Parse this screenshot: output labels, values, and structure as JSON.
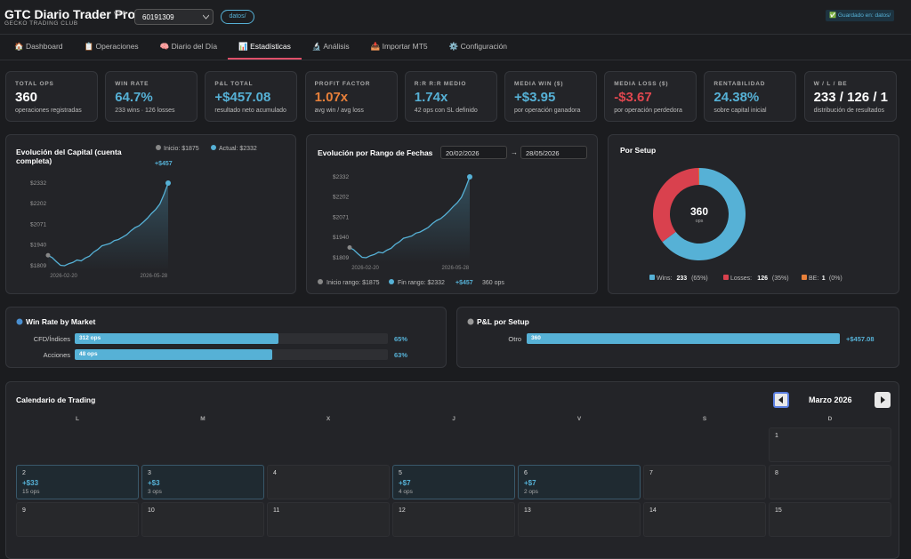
{
  "header": {
    "title": "GTC Diario Trader Pro",
    "version": "v3.8",
    "subtitle": "GECKO TRADING CLUB",
    "account": "60191309",
    "folder": "datos/",
    "saved": "✅ Guardado en: datos/"
  },
  "tabs": [
    "🏠 Dashboard",
    "📋 Operaciones",
    "🧠 Diario del Día",
    "📊 Estadísticas",
    "🔬 Análisis",
    "📥 Importar MT5",
    "⚙️ Configuración"
  ],
  "active_tab": 3,
  "kpis": [
    {
      "label": "TOTAL OPS",
      "value": "360",
      "sub": "operaciones registradas",
      "color": "#ffffff"
    },
    {
      "label": "WIN RATE",
      "value": "64.7%",
      "sub": "233 wins · 126 losses",
      "color": "#56b1d6"
    },
    {
      "label": "P&L TOTAL",
      "value": "+$457.08",
      "sub": "resultado neto acumulado",
      "color": "#56b1d6"
    },
    {
      "label": "PROFIT FACTOR",
      "value": "1.07x",
      "sub": "avg win / avg loss",
      "color": "#e8803a"
    },
    {
      "label": "R:R R:R MEDIO",
      "value": "1.74x",
      "sub": "42 ops con SL definido",
      "color": "#56b1d6"
    },
    {
      "label": "MEDIA WIN ($)",
      "value": "+$3.95",
      "sub": "por operación ganadora",
      "color": "#56b1d6"
    },
    {
      "label": "MEDIA LOSS ($)",
      "value": "-$3.67",
      "sub": "por operación perdedora",
      "color": "#e0474f"
    },
    {
      "label": "RENTABILIDAD",
      "value": "24.38%",
      "sub": "sobre capital inicial",
      "color": "#56b1d6"
    },
    {
      "label": "W / L / BE",
      "value": "233 / 126 / 1",
      "sub": "distribución de resultados",
      "color": "#ffffff"
    }
  ],
  "capital_chart": {
    "title": "Evolución del Capital (cuenta completa)",
    "start_label": "Inicio: $1875",
    "end_label": "Actual: $2332",
    "change": "+$457",
    "values": [
      1875,
      1860,
      1835,
      1812,
      1809,
      1822,
      1830,
      1845,
      1840,
      1858,
      1870,
      1895,
      1912,
      1935,
      1942,
      1950,
      1968,
      1975,
      1990,
      2005,
      2030,
      2050,
      2062,
      2085,
      2110,
      2140,
      2165,
      2200,
      2260,
      2332
    ],
    "ylim": [
      1809,
      2332
    ],
    "yticks": [
      {
        "value": 1809,
        "label": "$1809"
      },
      {
        "value": 1940,
        "label": "$1940"
      },
      {
        "value": 2071,
        "label": "$2071"
      },
      {
        "value": 2202,
        "label": "$2202"
      },
      {
        "value": 2332,
        "label": "$2332"
      }
    ],
    "xticks": [
      "2026-02-20",
      "2026-05-28"
    ]
  },
  "range_chart": {
    "title": "Evolución por Rango de Fechas",
    "from": "20/02/2026",
    "arrow": "→",
    "to": "28/05/2026",
    "values": [
      1875,
      1860,
      1835,
      1812,
      1809,
      1822,
      1830,
      1845,
      1840,
      1858,
      1870,
      1895,
      1912,
      1935,
      1942,
      1950,
      1968,
      1975,
      1990,
      2005,
      2030,
      2050,
      2062,
      2085,
      2110,
      2140,
      2165,
      2200,
      2260,
      2332
    ],
    "ylim": [
      1809,
      2332
    ],
    "yticks": [
      {
        "value": 1809,
        "label": "$1809"
      },
      {
        "value": 1940,
        "label": "$1940"
      },
      {
        "value": 2071,
        "label": "$2071"
      },
      {
        "value": 2202,
        "label": "$2202"
      },
      {
        "value": 2332,
        "label": "$2332"
      }
    ],
    "xticks": [
      "2026-02-20",
      "2026-05-28"
    ],
    "start_label": "Inicio rango: $1875",
    "end_label": "Fin rango: $2332",
    "change": "+$457",
    "ops": "360 ops"
  },
  "setup_donut": {
    "title": "Por Setup",
    "total": "360",
    "total_label": "ops",
    "series": [
      {
        "name": "Wins:",
        "value": 233,
        "pct": "(65%)",
        "color": "#56b1d6"
      },
      {
        "name": "Losses:",
        "value": 126,
        "pct": "(35%)",
        "color": "#d9414e"
      },
      {
        "name": "BE:",
        "value": 1,
        "pct": "(0%)",
        "color": "#e8803a"
      }
    ]
  },
  "market": {
    "title": "Win Rate by Market",
    "rows": [
      {
        "label": "CFD/Índices",
        "ops": "312 ops",
        "win_rate": 65,
        "win_rate_label": "65%"
      },
      {
        "label": "Acciones",
        "ops": "48 ops",
        "win_rate": 63,
        "win_rate_label": "63%"
      }
    ]
  },
  "pnl_setup": {
    "title": "P&L por Setup",
    "rows": [
      {
        "label": "Otro",
        "ops": 360,
        "pnl": "+$457.08"
      }
    ]
  },
  "calendar": {
    "title": "Calendario de Trading",
    "month": "Marzo 2026",
    "weekdays": [
      "L",
      "M",
      "X",
      "J",
      "V",
      "S",
      "D"
    ],
    "days": [
      {
        "day": "1"
      },
      {
        "day": "2",
        "pnl": "+$33",
        "ops": "15 ops"
      },
      {
        "day": "3",
        "pnl": "+$3",
        "ops": "3 ops"
      },
      {
        "day": "4"
      },
      {
        "day": "5",
        "pnl": "+$7",
        "ops": "4 ops"
      },
      {
        "day": "6",
        "pnl": "+$7",
        "ops": "2 ops"
      },
      {
        "day": "7"
      },
      {
        "day": "8"
      },
      {
        "day": "9"
      },
      {
        "day": "10"
      },
      {
        "day": "11"
      },
      {
        "day": "12"
      },
      {
        "day": "13"
      },
      {
        "day": "14"
      },
      {
        "day": "15"
      }
    ]
  }
}
